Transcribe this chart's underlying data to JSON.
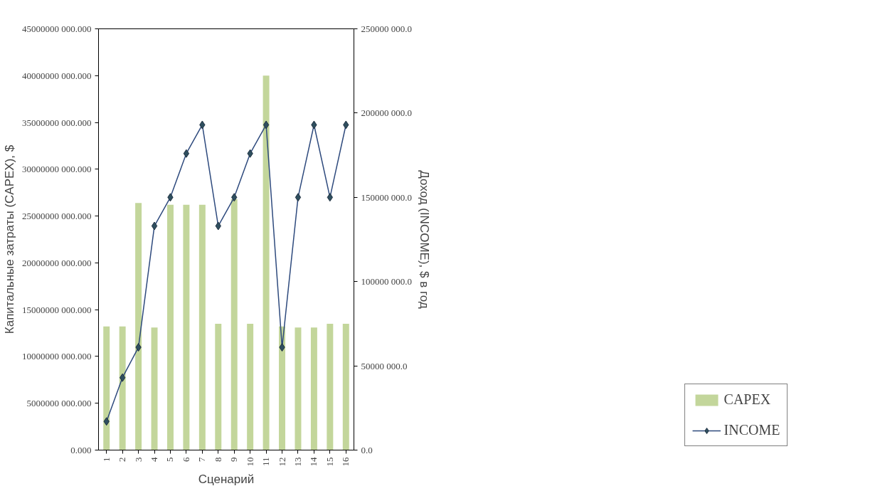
{
  "chart_data": {
    "type": "bar",
    "xlabel": "Сценарий",
    "ylabel": "Капитальные затраты (CAPEX), $",
    "y2label": "Доход (INCOME), $ в год",
    "categories": [
      "1",
      "2",
      "3",
      "4",
      "5",
      "6",
      "7",
      "8",
      "9",
      "10",
      "11",
      "12",
      "13",
      "14",
      "15",
      "16"
    ],
    "series": [
      {
        "name": "CAPEX",
        "color": "#c3d69b",
        "values": [
          13200000000,
          13200000000,
          26400000000,
          13100000000,
          26200000000,
          26200000000,
          26200000000,
          13500000000,
          26800000000,
          13500000000,
          40000000000,
          13200000000,
          13100000000,
          13100000000,
          13500000000,
          13500000000
        ]
      },
      {
        "name": "INCOME",
        "type": "line",
        "axis": "y2",
        "color": "#2e4a7d",
        "marker": "diamond",
        "values": [
          17000000,
          43000000,
          61000000,
          133000000,
          150000000,
          176000000,
          193000000,
          133000000,
          150000000,
          176000000,
          193000000,
          61000000,
          150000000,
          193000000,
          150000000,
          193000000
        ]
      }
    ],
    "ylim": [
      0,
      45000000000
    ],
    "yticks": [
      {
        "value": 0,
        "label": "0.000"
      },
      {
        "value": 5000000000,
        "label": "5000000 000.000"
      },
      {
        "value": 10000000000,
        "label": "10000000 000.000"
      },
      {
        "value": 15000000000,
        "label": "15000000 000.000"
      },
      {
        "value": 20000000000,
        "label": "20000000 000.000"
      },
      {
        "value": 25000000000,
        "label": "25000000 000.000"
      },
      {
        "value": 30000000000,
        "label": "30000000 000.000"
      },
      {
        "value": 35000000000,
        "label": "35000000 000.000"
      },
      {
        "value": 40000000000,
        "label": "40000000 000.000"
      },
      {
        "value": 45000000000,
        "label": "45000000 000.000"
      }
    ],
    "y2lim": [
      0,
      250000000
    ],
    "y2ticks": [
      {
        "value": 0,
        "label": "0.0"
      },
      {
        "value": 50000000,
        "label": "50000 000.0"
      },
      {
        "value": 100000000,
        "label": "100000 000.0"
      },
      {
        "value": 150000000,
        "label": "150000 000.0"
      },
      {
        "value": 200000000,
        "label": "200000 000.0"
      },
      {
        "value": 250000000,
        "label": "250000 000.0"
      }
    ],
    "legend": "bottom right",
    "grid": false
  }
}
